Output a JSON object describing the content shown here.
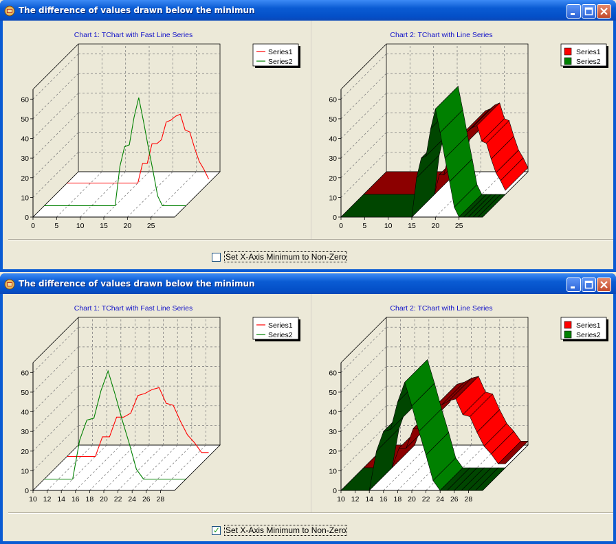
{
  "windows": [
    {
      "title": "The difference of values drawn below the minimun",
      "checkbox": {
        "label": "Set X-Axis Minimum to Non-Zero",
        "checked": false
      },
      "chart_data": [
        {
          "type": "line",
          "title": "Chart 1: TChart with Fast Line Series",
          "view3d": true,
          "xlim": [
            0,
            30
          ],
          "ylim": [
            0,
            65
          ],
          "x_ticks": [
            0,
            5,
            10,
            15,
            20,
            25
          ],
          "y_ticks": [
            0,
            10,
            20,
            30,
            40,
            50,
            60
          ],
          "legend": "top-right",
          "series": [
            {
              "name": "Series1",
              "color": "#ff0000",
              "x": [
                0,
                2,
                4,
                6,
                8,
                10,
                12,
                14,
                15,
                16,
                17,
                18,
                19,
                20,
                21,
                22,
                23,
                24,
                25,
                26,
                27,
                28,
                29,
                30
              ],
              "y": [
                0,
                0,
                0,
                0,
                0,
                0,
                0,
                0,
                0,
                10,
                10,
                20,
                20,
                22,
                31,
                32,
                34,
                35,
                27,
                26,
                18,
                11,
                7,
                2
              ]
            },
            {
              "name": "Series2",
              "color": "#008000",
              "x": [
                0,
                2,
                4,
                6,
                8,
                10,
                12,
                14,
                15,
                16,
                17,
                18,
                19,
                20,
                21,
                22,
                23,
                24,
                25,
                26,
                27,
                28,
                29,
                30
              ],
              "y": [
                0,
                0,
                0,
                0,
                0,
                0,
                0,
                0,
                0,
                20,
                30,
                31,
                45,
                55,
                43,
                30,
                18,
                5,
                0,
                0,
                0,
                0,
                0,
                0
              ]
            }
          ]
        },
        {
          "type": "area",
          "title": "Chart 2: TChart with Line Series",
          "view3d": true,
          "xlim": [
            0,
            30
          ],
          "ylim": [
            0,
            65
          ],
          "x_ticks": [
            0,
            5,
            10,
            15,
            20,
            25
          ],
          "y_ticks": [
            0,
            10,
            20,
            30,
            40,
            50,
            60
          ],
          "legend": "top-right",
          "series": [
            {
              "name": "Series1",
              "color": "#ff0000",
              "x": [
                0,
                15,
                16,
                17,
                18,
                19,
                20,
                21,
                22,
                23,
                24,
                25,
                26,
                27,
                28,
                29,
                30
              ],
              "y": [
                0,
                0,
                10,
                10,
                20,
                20,
                22,
                31,
                32,
                34,
                35,
                27,
                26,
                18,
                11,
                7,
                2
              ]
            },
            {
              "name": "Series2",
              "color": "#008000",
              "x": [
                0,
                15,
                16,
                17,
                18,
                19,
                20,
                21,
                22,
                23,
                24,
                25,
                26,
                27,
                28,
                29,
                30
              ],
              "y": [
                0,
                0,
                20,
                30,
                31,
                45,
                55,
                43,
                30,
                18,
                5,
                0,
                0,
                0,
                0,
                0,
                0
              ]
            }
          ]
        }
      ]
    },
    {
      "title": "The difference of values drawn below the minimun",
      "checkbox": {
        "label": "Set X-Axis Minimum to Non-Zero",
        "checked": true
      },
      "chart_data": [
        {
          "type": "line",
          "title": "Chart 1: TChart with Fast Line Series",
          "view3d": true,
          "xlim": [
            10,
            30
          ],
          "ylim": [
            0,
            65
          ],
          "x_ticks": [
            10,
            12,
            14,
            16,
            18,
            20,
            22,
            24,
            26,
            28
          ],
          "y_ticks": [
            0,
            10,
            20,
            30,
            40,
            50,
            60
          ],
          "legend": "top-right",
          "series": [
            {
              "name": "Series1",
              "color": "#ff0000",
              "x": [
                10,
                14,
                15,
                16,
                17,
                18,
                19,
                20,
                21,
                22,
                23,
                24,
                25,
                26,
                27,
                28,
                29,
                30
              ],
              "y": [
                0,
                0,
                10,
                10,
                20,
                20,
                22,
                31,
                32,
                34,
                35,
                27,
                26,
                18,
                11,
                7,
                2,
                2
              ]
            },
            {
              "name": "Series2",
              "color": "#008000",
              "x": [
                10,
                14,
                15,
                16,
                17,
                18,
                19,
                20,
                21,
                22,
                23,
                24,
                25,
                26,
                27,
                28,
                29,
                30
              ],
              "y": [
                0,
                0,
                20,
                30,
                31,
                45,
                55,
                43,
                30,
                18,
                5,
                0,
                0,
                0,
                0,
                0,
                0,
                0
              ]
            }
          ]
        },
        {
          "type": "area",
          "title": "Chart 2: TChart with Line Series",
          "view3d": true,
          "xlim": [
            10,
            30
          ],
          "ylim": [
            0,
            65
          ],
          "x_ticks": [
            10,
            12,
            14,
            16,
            18,
            20,
            22,
            24,
            26,
            28
          ],
          "y_ticks": [
            0,
            10,
            20,
            30,
            40,
            50,
            60
          ],
          "legend": "top-right",
          "series": [
            {
              "name": "Series1",
              "color": "#ff0000",
              "x": [
                10,
                14,
                15,
                16,
                17,
                18,
                19,
                20,
                21,
                22,
                23,
                24,
                25,
                26,
                27,
                28,
                29,
                30
              ],
              "y": [
                0,
                0,
                10,
                10,
                20,
                20,
                22,
                31,
                32,
                34,
                35,
                27,
                26,
                18,
                11,
                7,
                2,
                2
              ]
            },
            {
              "name": "Series2",
              "color": "#008000",
              "x": [
                10,
                14,
                15,
                16,
                17,
                18,
                19,
                20,
                21,
                22,
                23,
                24,
                25,
                26,
                27,
                28,
                29,
                30
              ],
              "y": [
                0,
                0,
                20,
                30,
                31,
                45,
                55,
                43,
                30,
                18,
                5,
                0,
                0,
                0,
                0,
                0,
                0,
                0
              ]
            }
          ]
        }
      ]
    }
  ]
}
